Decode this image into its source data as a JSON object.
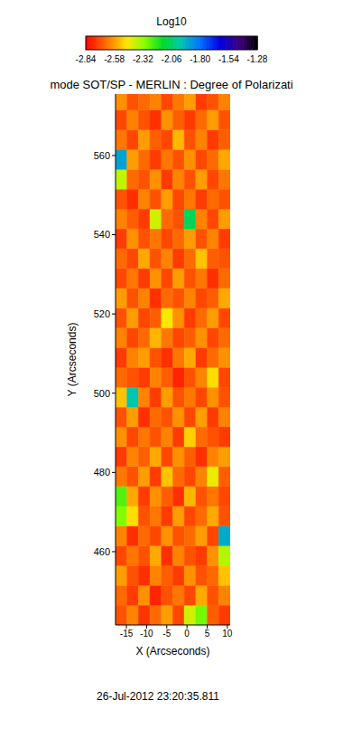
{
  "chart_data": {
    "type": "heatmap",
    "title": "mode SOT/SP - MERLIN : Degree of Polarizati",
    "x_label": "X (Arcseconds)",
    "y_label": "Y (Arcseconds)",
    "annotations": [
      "26-Jul-2012 23:20:35.811"
    ],
    "xlim": [
      -17.7,
      10.7
    ],
    "ylim": [
      441.5,
      575.5
    ],
    "xticks": [
      -15,
      -10,
      -5,
      0,
      5,
      10
    ],
    "yticks": [
      460,
      480,
      500,
      520,
      540,
      560
    ],
    "colorbar": {
      "label": "Log10",
      "range": [
        -2.84,
        -1.28
      ],
      "ticks": [
        -2.84,
        -2.58,
        -2.32,
        -2.06,
        {
          "value": -1.8,
          "label": "-1.80"
        },
        -1.54,
        -1.28
      ]
    },
    "cells": {
      "x_edges": [
        -17.7,
        -14.86,
        -12.02,
        -9.18,
        -6.34,
        -3.5,
        -0.66,
        2.18,
        5.02,
        7.86,
        10.7
      ],
      "y_edges": [
        441.5,
        446.5,
        451.5,
        456.5,
        461.5,
        466.5,
        471.5,
        476.5,
        481.5,
        486.5,
        491.5,
        496.5,
        501.5,
        506.5,
        511.5,
        516.5,
        521.5,
        526.5,
        531.5,
        536.5,
        541.5,
        546.5,
        551.5,
        556.5,
        561.5,
        566.5,
        571.5,
        575.5
      ],
      "values": [
        [
          -2.7,
          -2.62,
          -2.75,
          -2.66,
          -2.58,
          -2.72,
          -2.4,
          -2.28,
          -2.68,
          -2.74
        ],
        [
          -2.66,
          -2.74,
          -2.6,
          -2.78,
          -2.7,
          -2.64,
          -2.72,
          -2.56,
          -2.7,
          -2.62
        ],
        [
          -2.58,
          -2.7,
          -2.76,
          -2.62,
          -2.68,
          -2.74,
          -2.6,
          -2.7,
          -2.66,
          -2.52
        ],
        [
          -2.72,
          -2.64,
          -2.7,
          -2.56,
          -2.76,
          -2.62,
          -2.7,
          -2.74,
          -2.6,
          -2.36
        ],
        [
          -2.62,
          -2.76,
          -2.66,
          -2.72,
          -2.6,
          -2.7,
          -2.66,
          -2.58,
          -2.72,
          -1.92
        ],
        [
          -2.3,
          -2.48,
          -2.7,
          -2.64,
          -2.74,
          -2.58,
          -2.72,
          -2.66,
          -2.56,
          -2.7
        ],
        [
          -2.24,
          -2.56,
          -2.74,
          -2.6,
          -2.68,
          -2.76,
          -2.54,
          -2.7,
          -2.64,
          -2.72
        ],
        [
          -2.64,
          -2.7,
          -2.58,
          -2.74,
          -2.52,
          -2.66,
          -2.72,
          -2.62,
          -2.44,
          -2.68
        ],
        [
          -2.74,
          -2.62,
          -2.68,
          -2.56,
          -2.72,
          -2.6,
          -2.68,
          -2.76,
          -2.62,
          -2.58
        ],
        [
          -2.6,
          -2.72,
          -2.64,
          -2.7,
          -2.62,
          -2.74,
          -2.5,
          -2.66,
          -2.7,
          -2.74
        ],
        [
          -2.7,
          -2.58,
          -2.76,
          -2.66,
          -2.7,
          -2.6,
          -2.72,
          -2.58,
          -2.74,
          -2.62
        ],
        [
          -2.52,
          -1.98,
          -2.62,
          -2.74,
          -2.58,
          -2.7,
          -2.64,
          -2.72,
          -2.6,
          -2.7
        ],
        [
          -2.66,
          -2.7,
          -2.74,
          -2.62,
          -2.68,
          -2.78,
          -2.7,
          -2.62,
          -2.48,
          -2.72
        ],
        [
          -2.74,
          -2.62,
          -2.58,
          -2.7,
          -2.76,
          -2.64,
          -2.56,
          -2.74,
          -2.66,
          -2.6
        ],
        [
          -2.62,
          -2.72,
          -2.66,
          -2.54,
          -2.64,
          -2.72,
          -2.68,
          -2.6,
          -2.72,
          -2.66
        ],
        [
          -2.7,
          -2.58,
          -2.72,
          -2.68,
          -2.46,
          -2.6,
          -2.74,
          -2.66,
          -2.58,
          -2.72
        ],
        [
          -2.58,
          -2.7,
          -2.62,
          -2.76,
          -2.66,
          -2.7,
          -2.62,
          -2.72,
          -2.68,
          -2.56
        ],
        [
          -2.72,
          -2.64,
          -2.74,
          -2.6,
          -2.72,
          -2.58,
          -2.7,
          -2.64,
          -2.76,
          -2.66
        ],
        [
          -2.66,
          -2.72,
          -2.56,
          -2.7,
          -2.62,
          -2.74,
          -2.66,
          -2.52,
          -2.68,
          -2.7
        ],
        [
          -2.74,
          -2.6,
          -2.7,
          -2.64,
          -2.72,
          -2.66,
          -2.58,
          -2.7,
          -2.62,
          -2.74
        ],
        [
          -2.62,
          -2.68,
          -2.74,
          -2.4,
          -2.66,
          -2.7,
          -2.08,
          -2.62,
          -2.72,
          -2.58
        ],
        [
          -2.7,
          -2.76,
          -2.62,
          -2.7,
          -2.58,
          -2.72,
          -2.64,
          -2.74,
          -2.66,
          -2.7
        ],
        [
          -2.38,
          -2.66,
          -2.7,
          -2.6,
          -2.74,
          -2.62,
          -2.7,
          -2.58,
          -2.72,
          -2.64
        ],
        [
          -1.9,
          -2.58,
          -2.66,
          -2.74,
          -2.64,
          -2.7,
          -2.6,
          -2.72,
          -2.66,
          -2.56
        ],
        [
          -2.64,
          -2.72,
          -2.58,
          -2.68,
          -2.72,
          -2.54,
          -2.7,
          -2.62,
          -2.74,
          -2.68
        ],
        [
          -2.72,
          -2.62,
          -2.7,
          -2.76,
          -2.6,
          -2.68,
          -2.74,
          -2.66,
          -2.58,
          -2.7
        ],
        [
          -2.6,
          -2.7,
          -2.66,
          -2.62,
          -2.72,
          -2.64,
          -2.58,
          -2.74,
          -2.7,
          -2.62
        ]
      ]
    }
  }
}
